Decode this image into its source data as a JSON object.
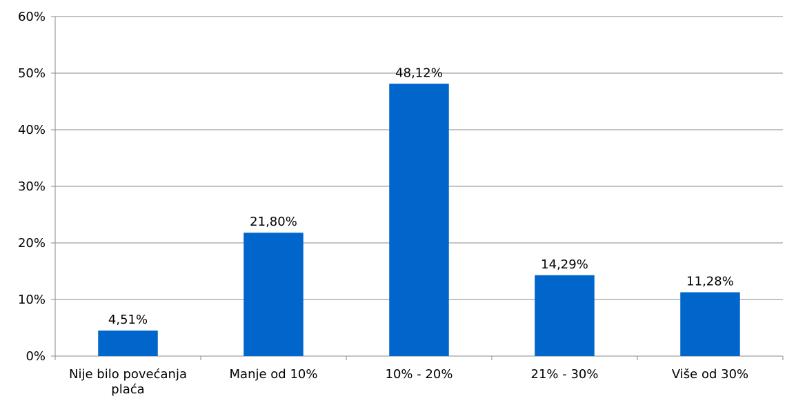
{
  "chart_data": {
    "type": "bar",
    "categories": [
      "Nije bilo povećanja plaća",
      "Manje od 10%",
      "10% - 20%",
      "21% - 30%",
      "Više od 30%"
    ],
    "category_label_lines": [
      [
        "Nije bilo povećanja",
        "plaća"
      ],
      [
        "Manje od 10%"
      ],
      [
        "10% - 20%"
      ],
      [
        "21% - 30%"
      ],
      [
        "Više od 30%"
      ]
    ],
    "values": [
      4.51,
      21.8,
      48.12,
      14.29,
      11.28
    ],
    "data_labels": [
      "4,51%",
      "21,80%",
      "48,12%",
      "14,29%",
      "11,28%"
    ],
    "ylim": [
      0,
      60
    ],
    "yticks": [
      0,
      10,
      20,
      30,
      40,
      50,
      60
    ],
    "ytick_labels": [
      "0%",
      "10%",
      "20%",
      "30%",
      "40%",
      "50%",
      "60%"
    ],
    "grid": true,
    "legend": "none",
    "colors": {
      "bar": "#0066CC",
      "grid": "#888888",
      "axis": "#888888"
    }
  }
}
